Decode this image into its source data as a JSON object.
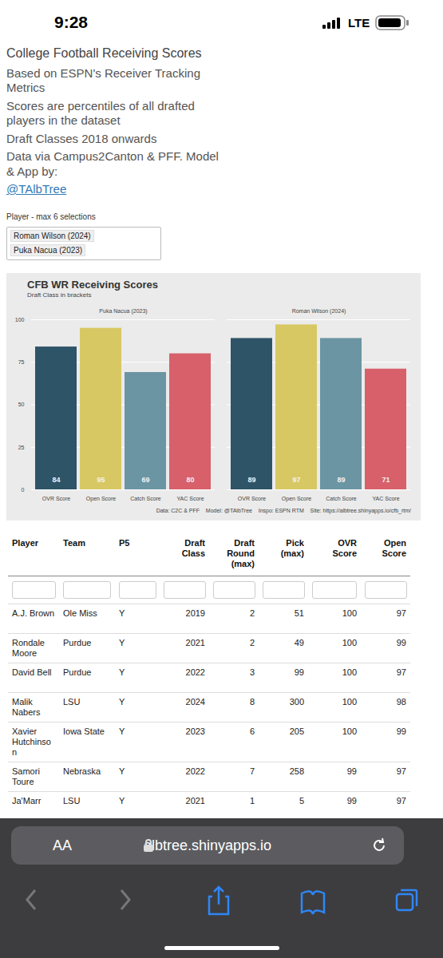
{
  "status_bar": {
    "time": "9:28",
    "network": "LTE"
  },
  "header": {
    "title": "College Football Receiving Scores",
    "lines": [
      "Based on ESPN's Receiver Tracking Metrics",
      "Scores are percentiles of all drafted players in the dataset",
      "Draft Classes 2018 onwards",
      "Data via Campus2Canton & PFF. Model & App by:"
    ],
    "link": "@TAlbTree"
  },
  "selector": {
    "label": "Player - max 6 selections",
    "selected": [
      "Roman Wilson (2024)",
      "Puka Nacua (2023)"
    ]
  },
  "chart_data": {
    "type": "bar",
    "title": "CFB WR Receiving Scores",
    "subtitle": "Draft Class in brackets",
    "categories": [
      "OVR Score",
      "Open Score",
      "Catch Score",
      "YAC Score"
    ],
    "colors": [
      "#2e5468",
      "#d8c863",
      "#6b95a3",
      "#d7606a"
    ],
    "series": [
      {
        "name": "Puka Nacua (2023)",
        "values": [
          84,
          95,
          69,
          80
        ]
      },
      {
        "name": "Roman Wilson (2024)",
        "values": [
          89,
          97,
          89,
          71
        ]
      }
    ],
    "ylim": [
      0,
      100
    ],
    "yticks": [
      0,
      25,
      50,
      75,
      100
    ],
    "grid": true,
    "data_labels": true,
    "caption": "Data: C2C & PFF    Model: @TAlbTree    Inspo: ESPN RTM    Site: https://albtree.shinyapps.io/cfb_rtm/"
  },
  "table": {
    "columns": [
      "Player",
      "Team",
      "P5",
      "Draft Class",
      "Draft Round (max)",
      "Pick (max)",
      "OVR Score",
      "Open Score"
    ],
    "rows": [
      [
        "A.J. Brown",
        "Ole Miss",
        "Y",
        2019,
        2,
        51,
        100,
        97
      ],
      [
        "Rondale Moore",
        "Purdue",
        "Y",
        2021,
        2,
        49,
        100,
        99
      ],
      [
        "David Bell",
        "Purdue",
        "Y",
        2022,
        3,
        99,
        100,
        97
      ],
      [
        "Malik Nabers",
        "LSU",
        "Y",
        2024,
        8,
        300,
        100,
        98
      ],
      [
        "Xavier Hutchinson",
        "Iowa State",
        "Y",
        2023,
        6,
        205,
        100,
        99
      ],
      [
        "Samori Toure",
        "Nebraska",
        "Y",
        2022,
        7,
        258,
        99,
        97
      ],
      [
        "Ja'Marr",
        "LSU",
        "Y",
        2021,
        1,
        5,
        99,
        97
      ]
    ]
  },
  "browser": {
    "text_size_button": "AA",
    "url": "albtree.shinyapps.io"
  }
}
